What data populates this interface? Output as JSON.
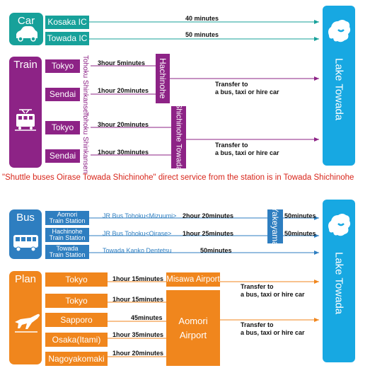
{
  "car": {
    "label": "Car",
    "routes": [
      {
        "from": "Kosaka IC",
        "time": "40 minutes"
      },
      {
        "from": "Towada IC",
        "time": "50 minutes"
      }
    ]
  },
  "train": {
    "label": "Train",
    "line_labels": [
      "Tohoku Shinkansen",
      "Tohoku Shinkansen"
    ],
    "routes": [
      {
        "from": "Tokyo",
        "time": "3hour  5minutes"
      },
      {
        "from": "Sendai",
        "time": "1hour 20minutes"
      },
      {
        "from": "Tokyo",
        "time": "3hour 20minutes"
      },
      {
        "from": "Sendai",
        "time": "1hour 30minutes"
      }
    ],
    "stations": [
      "Hachinohe",
      "Shichinohe Towada"
    ],
    "transfer": [
      "Transfer to",
      "a bus, taxi or hire car"
    ]
  },
  "notice": "\"Shuttle buses Oirase Towada Shichinohe\" direct service from the station is in Towada Shichinohe",
  "bus": {
    "label": "Bus",
    "routes": [
      {
        "from_line1": "Aomori",
        "from_line2": "Train Station",
        "company": "JR Bus Tohoku<Mizuumi>",
        "time": "2hour 20minutes",
        "time2": "50minutes"
      },
      {
        "from_line1": "Hachinohe",
        "from_line2": "Train Station",
        "company": "JR Bus Tohoku<Oirase>",
        "time": "1hour 25minutes",
        "time2": "50minutes"
      },
      {
        "from_line1": "Towada",
        "from_line2": "Train Station",
        "company": "Towada Kanko Dentetsu",
        "time": "50minutes"
      }
    ],
    "hub": "Yakeyama"
  },
  "plane": {
    "label": "Plan",
    "routes": [
      {
        "from": "Tokyo",
        "time": "1hour 15minutes"
      },
      {
        "from": "Tokyo",
        "time": "1hour 15minutes"
      },
      {
        "from": "Sapporo",
        "time": "45minutes"
      },
      {
        "from": "Osaka(Itami)",
        "time": "1hour 35minutes"
      },
      {
        "from": "Nagoyakomaki",
        "time": "1hour 20minutes"
      }
    ],
    "airports": [
      "Misawa Airport",
      "Aomori",
      "Airport"
    ],
    "transfer": [
      "Transfer to",
      "a bus, taxi or hire car"
    ]
  },
  "destination": "Lake Towada",
  "colors": {
    "car": "#17a19a",
    "train": "#8d2386",
    "bus": "#2e7ec0",
    "plane": "#f0861d",
    "lake": "#17a8e2",
    "notice": "#d8261b"
  }
}
